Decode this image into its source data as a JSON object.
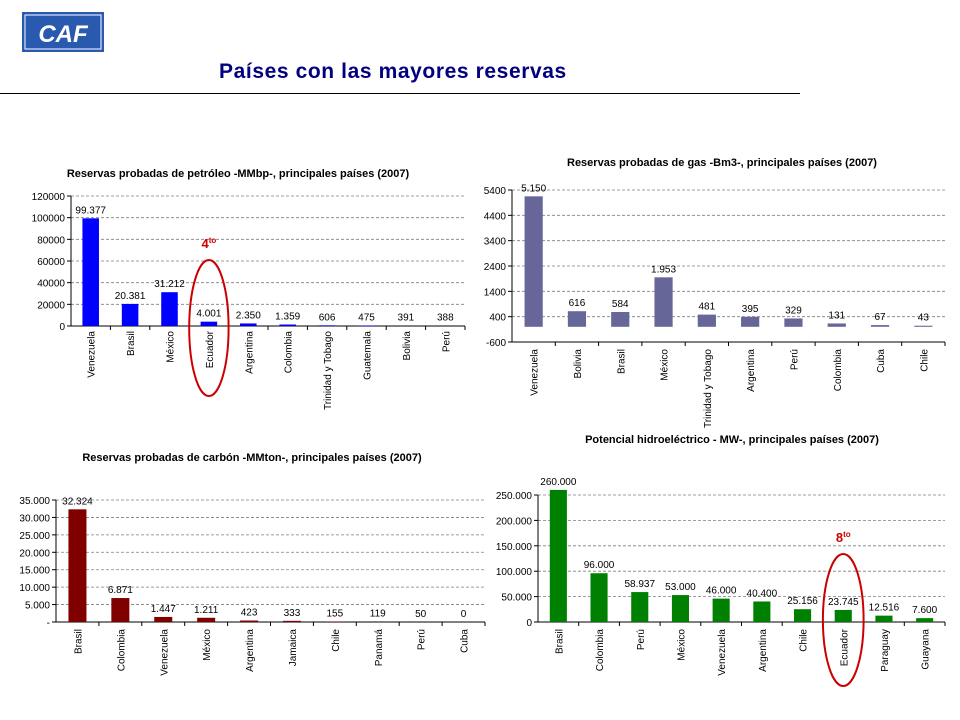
{
  "header": {
    "logo_text": "CAF",
    "title": "Países con las mayores reservas"
  },
  "chart_data": [
    {
      "type": "bar",
      "title": "Reservas probadas de petróleo -MMbp-, principales países (2007)",
      "categories": [
        "Venezuela",
        "Brasil",
        "México",
        "Ecuador",
        "Argentina",
        "Colombia",
        "Trinidad y Tobago",
        "Guatemala",
        "Bolivia",
        "Perú"
      ],
      "values": [
        99377,
        20381,
        31212,
        4001,
        2350,
        1359,
        606,
        475,
        391,
        388
      ],
      "data_labels": [
        "99.377",
        "20.381",
        "31.212",
        "4.001",
        "2.350",
        "1.359",
        "606",
        "475",
        "391",
        "388"
      ],
      "yticks": [
        "0",
        "20000",
        "40000",
        "60000",
        "80000",
        "100000",
        "120000"
      ],
      "ylim": [
        0,
        120000
      ],
      "color": "#0000ff",
      "grid": true,
      "annotation": {
        "text": "4",
        "sup": "to",
        "category_index": 3,
        "color": "#cc0000"
      }
    },
    {
      "type": "bar",
      "title": "Reservas probadas de gas -Bm3-, principales países (2007)",
      "categories": [
        "Venezuela",
        "Bolivia",
        "Brasil",
        "México",
        "Trinidad y Tobago",
        "Argentina",
        "Perú",
        "Colombia",
        "Cuba",
        "Chile"
      ],
      "values": [
        5150,
        616,
        584,
        1953,
        481,
        395,
        329,
        131,
        67,
        43
      ],
      "data_labels": [
        "5.150",
        "616",
        "584",
        "1.953",
        "481",
        "395",
        "329",
        "131",
        "67",
        "43"
      ],
      "yticks": [
        "-600",
        "400",
        "1400",
        "2400",
        "3400",
        "4400",
        "5400"
      ],
      "ylim": [
        -600,
        5400
      ],
      "color": "#666699",
      "grid": true
    },
    {
      "type": "bar",
      "title": "Reservas probadas de carbón -MMton-, principales países (2007)",
      "categories": [
        "Brasil",
        "Colombia",
        "Venezuela",
        "México",
        "Argentina",
        "Jamaica",
        "Chile",
        "Panamá",
        "Perú",
        "Cuba"
      ],
      "values": [
        32324,
        6871,
        1447,
        1211,
        423,
        333,
        155,
        119,
        50,
        0
      ],
      "data_labels": [
        "32.324",
        "6.871",
        "1.447",
        "1.211",
        "423",
        "333",
        "155",
        "119",
        "50",
        "0"
      ],
      "yticks": [
        "-",
        "5.000",
        "10.000",
        "15.000",
        "20.000",
        "25.000",
        "30.000",
        "35.000"
      ],
      "ylim": [
        0,
        35000
      ],
      "color": "#800000",
      "grid": true
    },
    {
      "type": "bar",
      "title": "Potencial hidroeléctrico - MW-, principales países (2007)",
      "categories": [
        "Brasil",
        "Colombia",
        "Perú",
        "México",
        "Venezuela",
        "Argentina",
        "Chile",
        "Ecuador",
        "Paraguay",
        "Guayana"
      ],
      "values": [
        260000,
        96000,
        58937,
        53000,
        46000,
        40400,
        25156,
        23745,
        12516,
        7600
      ],
      "data_labels": [
        "260.000",
        "96.000",
        "58.937",
        "53.000",
        "46.000",
        "40.400",
        "25.156",
        "23.745",
        "12.516",
        "7.600"
      ],
      "yticks": [
        "0",
        "50.000",
        "100.000",
        "150.000",
        "200.000",
        "250.000"
      ],
      "ylim": [
        0,
        250000
      ],
      "color": "#008000",
      "grid": true,
      "annotation": {
        "text": "8",
        "sup": "to",
        "category_index": 7,
        "color": "#cc0000"
      }
    }
  ]
}
